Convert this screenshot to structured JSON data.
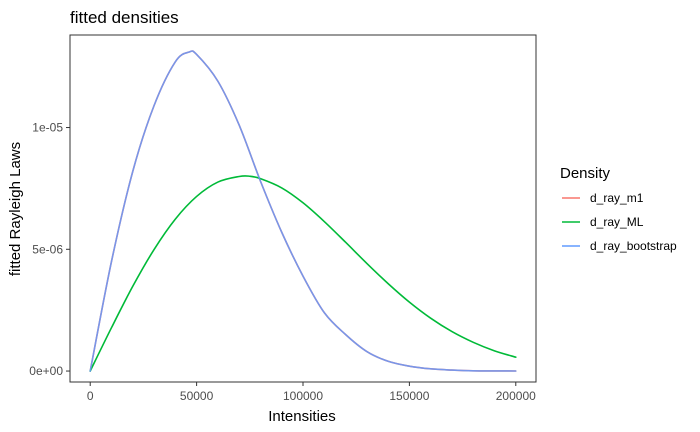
{
  "chart_data": {
    "type": "line",
    "title": "fitted densities",
    "xlabel": "Intensities",
    "ylabel": "fitted Rayleigh Laws",
    "xlim": [
      -9500,
      209500
    ],
    "ylim": [
      -4.5e-07,
      1.38e-05
    ],
    "x_ticks": [
      {
        "value": 0,
        "label": "0"
      },
      {
        "value": 50000,
        "label": "50000"
      },
      {
        "value": 100000,
        "label": "100000"
      },
      {
        "value": 150000,
        "label": "150000"
      },
      {
        "value": 200000,
        "label": "200000"
      }
    ],
    "y_ticks": [
      {
        "value": 0,
        "label": "0e+00"
      },
      {
        "value": 5e-06,
        "label": "5e-06"
      },
      {
        "value": 1e-05,
        "label": "1e-05"
      }
    ],
    "grid": false,
    "legend": {
      "title": "Density",
      "position": "right",
      "entries": [
        {
          "label": "d_ray_m1",
          "color": "#F8766D"
        },
        {
          "label": "d_ray_ML",
          "color": "#00BA38"
        },
        {
          "label": "d_ray_bootstrap",
          "color": "#619CFF"
        }
      ]
    },
    "series": [
      {
        "name": "d_ray_m1",
        "color": "#F8766D",
        "x": [
          0,
          10000,
          20000,
          30000,
          40000,
          46500,
          50000,
          60000,
          70000,
          80000,
          90000,
          100000,
          110000,
          120000,
          130000,
          140000,
          150000,
          160000,
          170000,
          180000,
          190000,
          200000
        ],
        "y": [
          0,
          4.5e-06,
          8.2e-06,
          1.09e-05,
          1.27e-05,
          1.31e-05,
          1.3e-05,
          1.19e-05,
          1.01e-05,
          7.8e-06,
          5.7e-06,
          3.9e-06,
          2.4e-06,
          1.5e-06,
          8e-07,
          4e-07,
          2e-07,
          9e-08,
          4e-08,
          1e-08,
          5e-09,
          2e-09
        ]
      },
      {
        "name": "d_ray_ML",
        "color": "#00BA38",
        "x": [
          0,
          10000,
          20000,
          30000,
          40000,
          50000,
          60000,
          70000,
          75000,
          80000,
          90000,
          100000,
          110000,
          120000,
          130000,
          140000,
          150000,
          160000,
          170000,
          180000,
          190000,
          200000
        ],
        "y": [
          0,
          1.78e-06,
          3.48e-06,
          4.99e-06,
          6.24e-06,
          7.17e-06,
          7.76e-06,
          7.99e-06,
          8e-06,
          7.9e-06,
          7.52e-06,
          6.91e-06,
          6.14e-06,
          5.29e-06,
          4.42e-06,
          3.59e-06,
          2.83e-06,
          2.17e-06,
          1.62e-06,
          1.18e-06,
          8.3e-07,
          5.7e-07
        ]
      },
      {
        "name": "d_ray_bootstrap",
        "color": "#619CFF",
        "x": [
          0,
          10000,
          20000,
          30000,
          40000,
          46500,
          50000,
          60000,
          70000,
          80000,
          90000,
          100000,
          110000,
          120000,
          130000,
          140000,
          150000,
          160000,
          170000,
          180000,
          190000,
          200000
        ],
        "y": [
          0,
          4.5e-06,
          8.2e-06,
          1.09e-05,
          1.27e-05,
          1.31e-05,
          1.3e-05,
          1.19e-05,
          1.01e-05,
          7.8e-06,
          5.7e-06,
          3.9e-06,
          2.4e-06,
          1.5e-06,
          8e-07,
          4e-07,
          2e-07,
          9e-08,
          4e-08,
          1e-08,
          5e-09,
          2e-09
        ]
      }
    ]
  }
}
